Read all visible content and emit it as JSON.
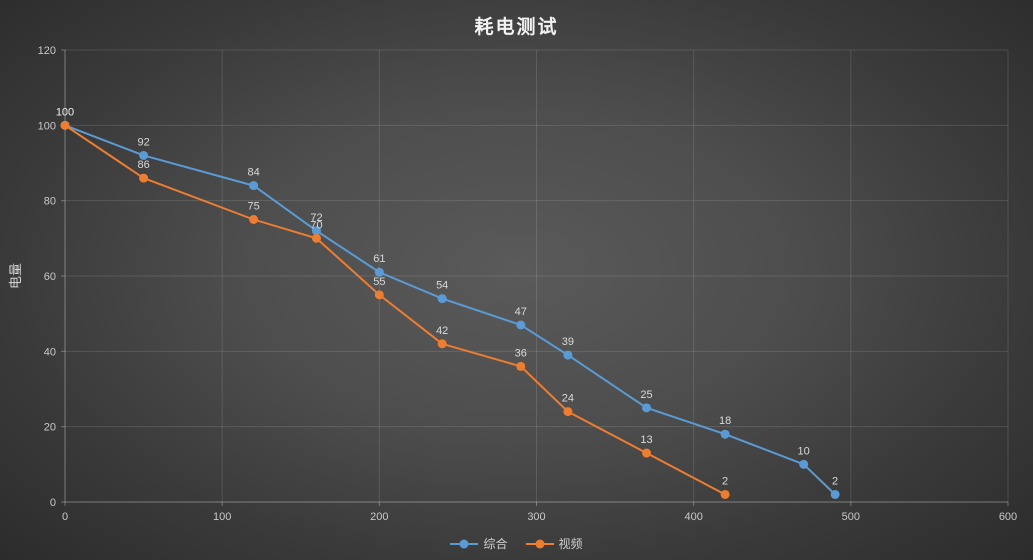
{
  "chart_data": {
    "type": "line",
    "title": "耗电测试",
    "xlabel": "",
    "ylabel": "电量",
    "xlim": [
      0,
      600
    ],
    "ylim": [
      0,
      120
    ],
    "x_ticks": [
      0,
      100,
      200,
      300,
      400,
      500,
      600
    ],
    "y_ticks": [
      0,
      20,
      40,
      60,
      80,
      100,
      120
    ],
    "grid": true,
    "legend_position": "bottom",
    "data_labels": true,
    "series": [
      {
        "name": "综合",
        "color": "#5B9BD5",
        "points": [
          [
            0,
            100
          ],
          [
            50,
            92
          ],
          [
            120,
            84
          ],
          [
            160,
            72
          ],
          [
            200,
            61
          ],
          [
            240,
            54
          ],
          [
            290,
            47
          ],
          [
            320,
            39
          ],
          [
            370,
            25
          ],
          [
            420,
            18
          ],
          [
            470,
            10
          ],
          [
            490,
            2
          ]
        ]
      },
      {
        "name": "视频",
        "color": "#ED7D31",
        "points": [
          [
            0,
            100
          ],
          [
            50,
            86
          ],
          [
            120,
            75
          ],
          [
            160,
            70
          ],
          [
            200,
            55
          ],
          [
            240,
            42
          ],
          [
            290,
            36
          ],
          [
            320,
            24
          ],
          [
            370,
            13
          ],
          [
            420,
            2
          ]
        ]
      }
    ],
    "colors": {
      "background_center": "#5a5a5a",
      "background_edge": "#2a2a2a",
      "gridline": "rgba(255,255,255,0.12)",
      "axis_line": "rgba(255,255,255,0.35)",
      "tick_label": "#c9c9c9",
      "data_label": "#d9d9d9",
      "title_text": "#f2f2f2"
    }
  }
}
